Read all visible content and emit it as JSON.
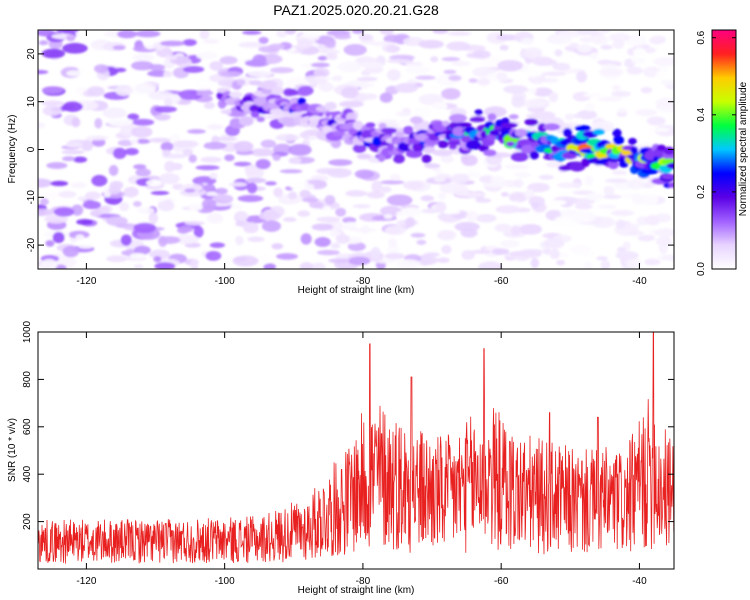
{
  "figure_title": "PAZ1.2025.020.20.21.G28",
  "colors": {
    "snr_line": "#e8201f",
    "colorbar_stops": [
      "#ffffff",
      "#e8d4ff",
      "#a060ff",
      "#5a00e6",
      "#0000ff",
      "#00c8ff",
      "#00ff40",
      "#c8ff00",
      "#ffcc00",
      "#ff2020",
      "#ff0080"
    ]
  },
  "chart_data": [
    {
      "type": "heatmap",
      "xlabel": "Height of straight line (km)",
      "ylabel": "Frequency (Hz)",
      "xlim": [
        -127,
        -35
      ],
      "ylim": [
        -25,
        25
      ],
      "xticks": [
        -120,
        -100,
        -80,
        -60,
        -40
      ],
      "yticks": [
        -20,
        -10,
        0,
        10,
        20
      ],
      "colorbar": {
        "label": "Normalized spectral amplitude",
        "range": [
          0.0,
          0.62
        ],
        "ticks": [
          "0.0",
          "0.2",
          "0.4",
          "0.6"
        ]
      },
      "ridge_x": [
        -100,
        -95,
        -90,
        -85,
        -80,
        -75,
        -70,
        -65,
        -60,
        -55,
        -50,
        -45,
        -40,
        -36
      ],
      "ridge_y": [
        10,
        9.5,
        9,
        7,
        3,
        1,
        2.5,
        4,
        3,
        1.5,
        0.5,
        -0.5,
        -1.5,
        -3
      ],
      "ridge_amplitude": [
        0.18,
        0.22,
        0.25,
        0.2,
        0.26,
        0.28,
        0.3,
        0.38,
        0.4,
        0.48,
        0.52,
        0.6,
        0.5,
        0.42
      ],
      "grid": false
    },
    {
      "type": "line",
      "xlabel": "Height of straight line (km)",
      "ylabel": "SNR (10 * v/v)",
      "xlim": [
        -127,
        -35
      ],
      "ylim": [
        0,
        1000
      ],
      "xticks": [
        -120,
        -100,
        -80,
        -60,
        -40
      ],
      "yticks": [
        200,
        400,
        600,
        800,
        1000
      ],
      "envelope_x": [
        -127,
        -110,
        -95,
        -88,
        -82,
        -80,
        -78,
        -75,
        -72,
        -68,
        -65,
        -62,
        -58,
        -55,
        -52,
        -48,
        -45,
        -42,
        -38,
        -37,
        -35
      ],
      "envelope_y": [
        150,
        150,
        160,
        220,
        380,
        480,
        520,
        470,
        430,
        400,
        450,
        520,
        420,
        400,
        380,
        360,
        370,
        360,
        550,
        450,
        400
      ],
      "peaks_x": [
        -79,
        -73,
        -62.5,
        -53,
        -46,
        -38
      ],
      "peaks_y": [
        950,
        810,
        930,
        660,
        640,
        1000
      ],
      "grid": false
    }
  ]
}
